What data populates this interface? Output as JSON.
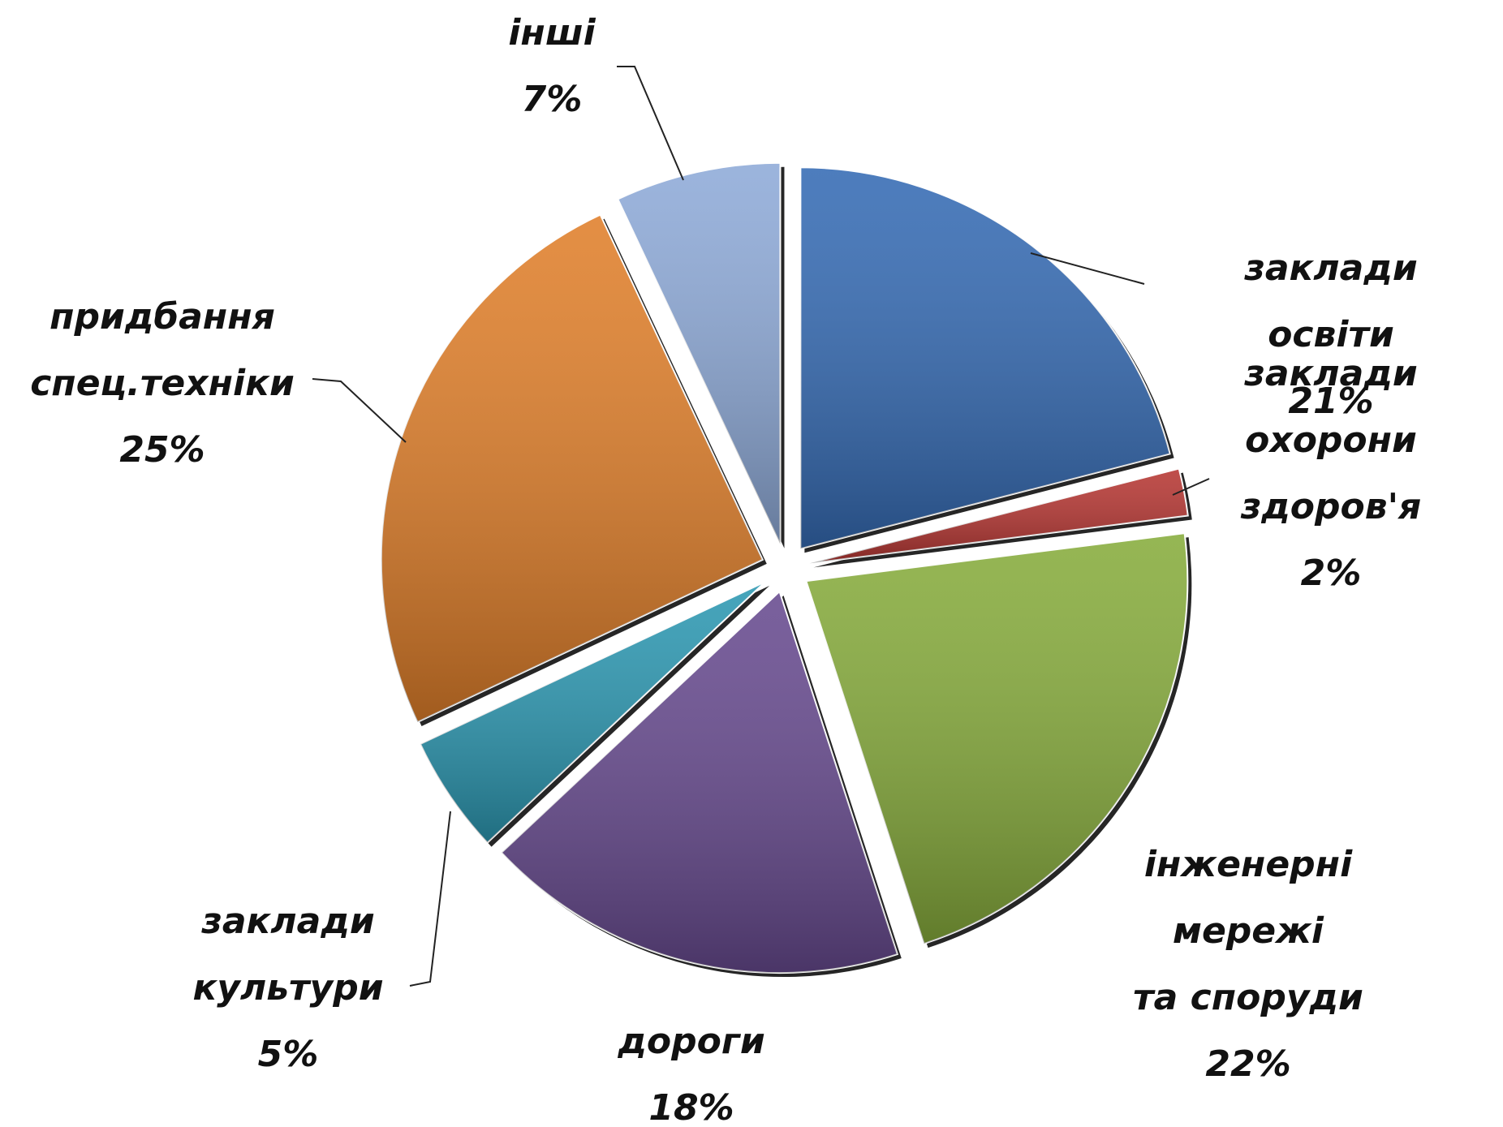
{
  "chart_data": {
    "type": "pie",
    "categories": [
      "заклади освіти",
      "заклади\nохорони\nздоров'я",
      "інженерні\nмережі\nта споруди",
      "дороги",
      "заклади\nкультури",
      "придбання\nспец.техніки",
      "інші"
    ],
    "values": [
      21,
      2,
      22,
      18,
      5,
      25,
      7
    ],
    "value_labels": [
      "21%",
      "2%",
      "22%",
      "18%",
      "5%",
      "25%",
      "7%"
    ],
    "colors": [
      "#356bb4",
      "#b63632",
      "#87ac3c",
      "#674a8f",
      "#2c98b2",
      "#e07f2a",
      "#8eaad8"
    ]
  }
}
